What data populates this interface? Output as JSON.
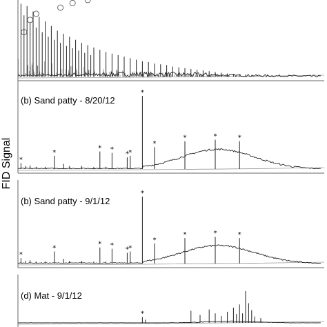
{
  "chart_data": {
    "type": "line",
    "ylabel": "FID Signal",
    "xlabel": "",
    "marker_symbol": "*",
    "series_color": "#222222",
    "baseline_color": "#999999",
    "panels": [
      {
        "label": "",
        "peak_marker": "circle",
        "xlim": [
          0,
          100
        ],
        "ylim": [
          0,
          100
        ],
        "peaks": [
          {
            "x": 1,
            "y": 95
          },
          {
            "x": 2,
            "y": 80
          },
          {
            "x": 3,
            "y": 92
          },
          {
            "x": 4,
            "y": 70
          },
          {
            "x": 5,
            "y": 85
          },
          {
            "x": 6,
            "y": 64
          },
          {
            "x": 7,
            "y": 78
          },
          {
            "x": 8,
            "y": 58
          },
          {
            "x": 9,
            "y": 72
          },
          {
            "x": 10,
            "y": 52
          },
          {
            "x": 11,
            "y": 66
          },
          {
            "x": 12,
            "y": 48
          },
          {
            "x": 13,
            "y": 60
          },
          {
            "x": 14,
            "y": 44
          },
          {
            "x": 15,
            "y": 56
          },
          {
            "x": 16,
            "y": 40
          },
          {
            "x": 17,
            "y": 52
          },
          {
            "x": 18,
            "y": 37
          },
          {
            "x": 19,
            "y": 48
          },
          {
            "x": 20,
            "y": 34
          },
          {
            "x": 21,
            "y": 44
          },
          {
            "x": 22,
            "y": 31
          },
          {
            "x": 23,
            "y": 41
          },
          {
            "x": 24,
            "y": 28
          },
          {
            "x": 25,
            "y": 38
          },
          {
            "x": 27,
            "y": 35
          },
          {
            "x": 29,
            "y": 32
          },
          {
            "x": 31,
            "y": 30
          },
          {
            "x": 33,
            "y": 28
          },
          {
            "x": 35,
            "y": 26
          },
          {
            "x": 37,
            "y": 24
          },
          {
            "x": 39,
            "y": 22
          },
          {
            "x": 41,
            "y": 20
          },
          {
            "x": 43,
            "y": 19
          },
          {
            "x": 45,
            "y": 17
          },
          {
            "x": 47,
            "y": 16
          },
          {
            "x": 49,
            "y": 15
          },
          {
            "x": 51,
            "y": 13
          },
          {
            "x": 53,
            "y": 12
          },
          {
            "x": 55,
            "y": 11
          },
          {
            "x": 57,
            "y": 10
          },
          {
            "x": 59,
            "y": 9
          },
          {
            "x": 61,
            "y": 8
          },
          {
            "x": 63,
            "y": 7
          },
          {
            "x": 65,
            "y": 6
          },
          {
            "x": 67,
            "y": 5
          },
          {
            "x": 69,
            "y": 4
          },
          {
            "x": 71,
            "y": 3.5
          },
          {
            "x": 73,
            "y": 3
          },
          {
            "x": 75,
            "y": 2.5
          },
          {
            "x": 77,
            "y": 2
          },
          {
            "x": 80,
            "y": 1.5
          },
          {
            "x": 84,
            "y": 1
          }
        ],
        "circled_peaks": [
          {
            "x": 2,
            "y": 58
          },
          {
            "x": 4,
            "y": 74
          },
          {
            "x": 6,
            "y": 82
          },
          {
            "x": 14,
            "y": 90
          },
          {
            "x": 18,
            "y": 96
          },
          {
            "x": 23,
            "y": 100
          }
        ],
        "hump": {
          "center": 40,
          "width": 40,
          "height": 3
        }
      },
      {
        "label": "(b) Sand patty - 8/20/12",
        "xlim": [
          0,
          100
        ],
        "ylim": [
          0,
          100
        ],
        "peaks": [
          {
            "x": 1,
            "y": 8,
            "marked": true
          },
          {
            "x": 2.5,
            "y": 4
          },
          {
            "x": 4,
            "y": 5
          },
          {
            "x": 6,
            "y": 3
          },
          {
            "x": 9,
            "y": 3
          },
          {
            "x": 12,
            "y": 18,
            "marked": true
          },
          {
            "x": 15,
            "y": 7
          },
          {
            "x": 17,
            "y": 4
          },
          {
            "x": 21,
            "y": 4
          },
          {
            "x": 25,
            "y": 3
          },
          {
            "x": 27,
            "y": 24,
            "marked": true
          },
          {
            "x": 29,
            "y": 3
          },
          {
            "x": 31,
            "y": 22,
            "marked": true
          },
          {
            "x": 36,
            "y": 16,
            "marked": true
          },
          {
            "x": 37,
            "y": 18,
            "marked": true
          },
          {
            "x": 41,
            "y": 100,
            "marked": true
          },
          {
            "x": 45,
            "y": 30,
            "marked": true
          },
          {
            "x": 55,
            "y": 38,
            "marked": true
          },
          {
            "x": 65,
            "y": 40,
            "marked": true
          },
          {
            "x": 73,
            "y": 38,
            "marked": true
          }
        ],
        "hump": {
          "center": 66,
          "width": 17,
          "height": 27
        }
      },
      {
        "label": "(b) Sand patty - 9/1/12",
        "xlim": [
          0,
          100
        ],
        "ylim": [
          0,
          100
        ],
        "peaks": [
          {
            "x": 1,
            "y": 8,
            "marked": true
          },
          {
            "x": 2.5,
            "y": 4
          },
          {
            "x": 4,
            "y": 5
          },
          {
            "x": 6,
            "y": 3
          },
          {
            "x": 9,
            "y": 3
          },
          {
            "x": 12,
            "y": 18,
            "marked": true
          },
          {
            "x": 15,
            "y": 7
          },
          {
            "x": 17,
            "y": 4
          },
          {
            "x": 21,
            "y": 4
          },
          {
            "x": 25,
            "y": 3
          },
          {
            "x": 27,
            "y": 24,
            "marked": true
          },
          {
            "x": 29,
            "y": 3
          },
          {
            "x": 31,
            "y": 22,
            "marked": true
          },
          {
            "x": 36,
            "y": 16,
            "marked": true
          },
          {
            "x": 37,
            "y": 18,
            "marked": true
          },
          {
            "x": 41,
            "y": 100,
            "marked": true
          },
          {
            "x": 45,
            "y": 30,
            "marked": true
          },
          {
            "x": 55,
            "y": 38,
            "marked": true
          },
          {
            "x": 65,
            "y": 40,
            "marked": true
          },
          {
            "x": 73,
            "y": 38,
            "marked": true
          }
        ],
        "hump": {
          "center": 66,
          "width": 17,
          "height": 27
        }
      },
      {
        "label": "(d) Mat - 9/1/12",
        "xlim": [
          0,
          100
        ],
        "ylim": [
          0,
          100
        ],
        "peaks": [
          {
            "x": 41,
            "y": 18,
            "marked": true
          },
          {
            "x": 42,
            "y": 10
          },
          {
            "x": 57,
            "y": 38
          },
          {
            "x": 60,
            "y": 25
          },
          {
            "x": 63,
            "y": 42
          },
          {
            "x": 65,
            "y": 30
          },
          {
            "x": 67,
            "y": 22
          },
          {
            "x": 69,
            "y": 35
          },
          {
            "x": 71,
            "y": 48
          },
          {
            "x": 72,
            "y": 28
          },
          {
            "x": 73,
            "y": 58
          },
          {
            "x": 74,
            "y": 30
          },
          {
            "x": 75,
            "y": 100
          },
          {
            "x": 76,
            "y": 62
          },
          {
            "x": 77,
            "y": 40
          },
          {
            "x": 78,
            "y": 20
          },
          {
            "x": 80,
            "y": 15
          }
        ],
        "hump": {
          "center": 70,
          "width": 12,
          "height": 5
        }
      }
    ]
  }
}
